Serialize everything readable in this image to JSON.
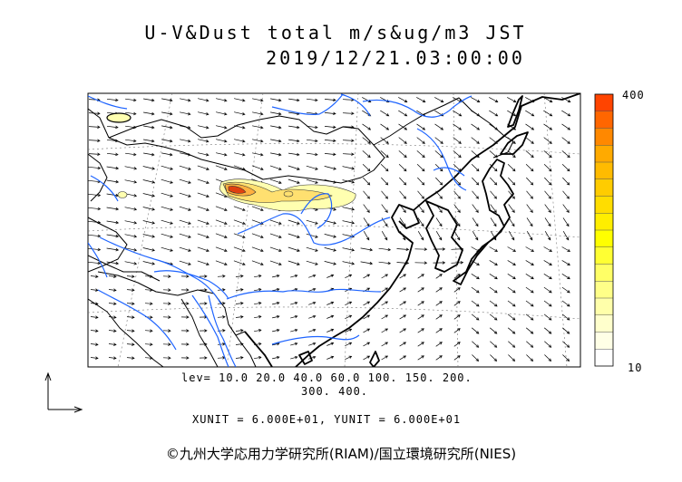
{
  "header": {
    "title_line1": "U-V&Dust total m/s&ug/m3 JST",
    "title_line2": "2019/12/21.03:00:00"
  },
  "colorbar": {
    "max_label": "400",
    "min_label": "10",
    "colors": [
      "#ff4400",
      "#ff6600",
      "#ff8800",
      "#ffaa00",
      "#ffbb00",
      "#ffcc00",
      "#ffdd00",
      "#ffee00",
      "#ffff00",
      "#ffff33",
      "#ffff66",
      "#ffff88",
      "#ffffaa",
      "#ffffcc",
      "#ffffe6",
      "#ffffff"
    ]
  },
  "legend": {
    "levels_line1": "lev= 10.0 20.0 40.0 60.0 100. 150. 200.",
    "levels_line2": "300. 400.",
    "units": "XUNIT = 6.000E+01, YUNIT = 6.000E+01"
  },
  "colors": {
    "coast": "#000000",
    "river": "#1e64ff",
    "arrow": "#000000",
    "dust_light": "#ffffb0",
    "dust_mid": "#ffe070",
    "dust_high": "#ff9020",
    "dust_peak": "#e04010"
  },
  "footer": {
    "credit": "©九州大学応用力学研究所(RIAM)/国立環境研究所(NIES)"
  }
}
